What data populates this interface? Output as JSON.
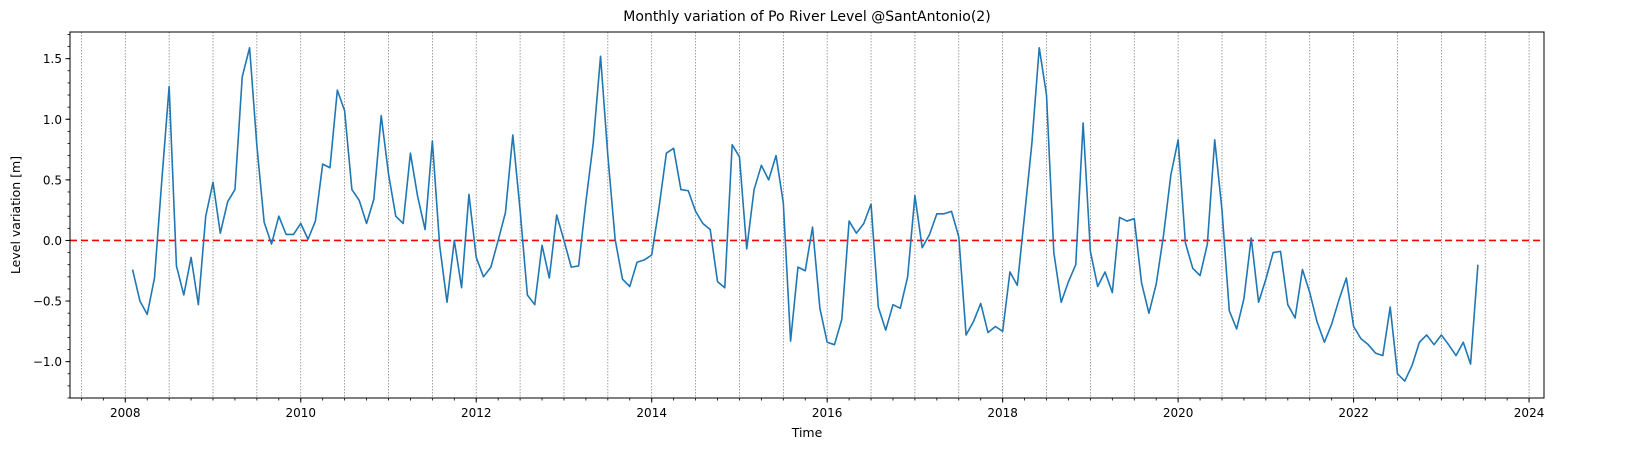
{
  "chart_data": {
    "type": "line",
    "title": "Monthly variation of Po River Level @SantAntonio(2)",
    "xlabel": "Time",
    "ylabel": "Level variation [m]",
    "xlim": [
      2007.37,
      2024.17
    ],
    "ylim": [
      -1.3,
      1.72
    ],
    "x_ticks": [
      2008,
      2010,
      2012,
      2014,
      2016,
      2018,
      2020,
      2022,
      2024
    ],
    "x_tick_labels": [
      "2008",
      "2010",
      "2012",
      "2014",
      "2016",
      "2018",
      "2020",
      "2022",
      "2024"
    ],
    "y_ticks": [
      -1.0,
      -0.5,
      0.0,
      0.5,
      1.0,
      1.5
    ],
    "y_tick_labels": [
      "−1.0",
      "−0.5",
      "0.0",
      "0.5",
      "1.0",
      "1.5"
    ],
    "vertical_gridlines": "half-year, dotted gray",
    "reference_line": {
      "y": 0.0,
      "style": "dashed",
      "color": "#ff0000"
    },
    "line_color": "#1f77b4",
    "x": [
      2008.083,
      2008.167,
      2008.25,
      2008.333,
      2008.417,
      2008.5,
      2008.583,
      2008.667,
      2008.75,
      2008.833,
      2008.917,
      2009.0,
      2009.083,
      2009.167,
      2009.25,
      2009.333,
      2009.417,
      2009.5,
      2009.583,
      2009.667,
      2009.75,
      2009.833,
      2009.917,
      2010.0,
      2010.083,
      2010.167,
      2010.25,
      2010.333,
      2010.417,
      2010.5,
      2010.583,
      2010.667,
      2010.75,
      2010.833,
      2010.917,
      2011.0,
      2011.083,
      2011.167,
      2011.25,
      2011.333,
      2011.417,
      2011.5,
      2011.583,
      2011.667,
      2011.75,
      2011.833,
      2011.917,
      2012.0,
      2012.083,
      2012.167,
      2012.25,
      2012.333,
      2012.417,
      2012.5,
      2012.583,
      2012.667,
      2012.75,
      2012.833,
      2012.917,
      2013.0,
      2013.083,
      2013.167,
      2013.25,
      2013.333,
      2013.417,
      2013.5,
      2013.583,
      2013.667,
      2013.75,
      2013.833,
      2013.917,
      2014.0,
      2014.083,
      2014.167,
      2014.25,
      2014.333,
      2014.417,
      2014.5,
      2014.583,
      2014.667,
      2014.75,
      2014.833,
      2014.917,
      2015.0,
      2015.083,
      2015.167,
      2015.25,
      2015.333,
      2015.417,
      2015.5,
      2015.583,
      2015.667,
      2015.75,
      2015.833,
      2015.917,
      2016.0,
      2016.083,
      2016.167,
      2016.25,
      2016.333,
      2016.417,
      2016.5,
      2016.583,
      2016.667,
      2016.75,
      2016.833,
      2016.917,
      2017.0,
      2017.083,
      2017.167,
      2017.25,
      2017.333,
      2017.417,
      2017.5,
      2017.583,
      2017.667,
      2017.75,
      2017.833,
      2017.917,
      2018.0,
      2018.083,
      2018.167,
      2018.25,
      2018.333,
      2018.417,
      2018.5,
      2018.583,
      2018.667,
      2018.75,
      2018.833,
      2018.917,
      2019.0,
      2019.083,
      2019.167,
      2019.25,
      2019.333,
      2019.417,
      2019.5,
      2019.583,
      2019.667,
      2019.75,
      2019.833,
      2019.917,
      2020.0,
      2020.083,
      2020.167,
      2020.25,
      2020.333,
      2020.417,
      2020.5,
      2020.583,
      2020.667,
      2020.75,
      2020.833,
      2020.917,
      2021.0,
      2021.083,
      2021.167,
      2021.25,
      2021.333,
      2021.417,
      2021.5,
      2021.583,
      2021.667,
      2021.75,
      2021.833,
      2021.917,
      2022.0,
      2022.083,
      2022.167,
      2022.25,
      2022.333,
      2022.417,
      2022.5,
      2022.583,
      2022.667,
      2022.75,
      2022.833,
      2022.917,
      2023.0,
      2023.083,
      2023.167,
      2023.25,
      2023.333,
      2023.417
    ],
    "values": [
      -0.24,
      -0.5,
      -0.61,
      -0.31,
      0.5,
      1.27,
      -0.21,
      -0.45,
      -0.14,
      -0.53,
      0.2,
      0.48,
      0.06,
      0.32,
      0.42,
      1.35,
      1.59,
      0.78,
      0.15,
      -0.03,
      0.2,
      0.05,
      0.05,
      0.14,
      0.01,
      0.16,
      0.63,
      0.6,
      1.24,
      1.07,
      0.42,
      0.33,
      0.14,
      0.34,
      1.03,
      0.55,
      0.2,
      0.14,
      0.72,
      0.36,
      0.09,
      0.82,
      -0.04,
      -0.51,
      0.0,
      -0.39,
      0.38,
      -0.14,
      -0.3,
      -0.22,
      0.0,
      0.23,
      0.87,
      0.25,
      -0.45,
      -0.53,
      -0.04,
      -0.31,
      0.21,
      0.0,
      -0.22,
      -0.21,
      0.32,
      0.8,
      1.52,
      0.7,
      0.01,
      -0.32,
      -0.38,
      -0.18,
      -0.16,
      -0.12,
      0.27,
      0.72,
      0.76,
      0.42,
      0.41,
      0.24,
      0.14,
      0.09,
      -0.34,
      -0.39,
      0.79,
      0.69,
      -0.07,
      0.42,
      0.62,
      0.5,
      0.7,
      0.31,
      -0.83,
      -0.22,
      -0.25,
      0.11,
      -0.56,
      -0.84,
      -0.86,
      -0.65,
      0.16,
      0.06,
      0.14,
      0.3,
      -0.55,
      -0.74,
      -0.53,
      -0.56,
      -0.3,
      0.37,
      -0.06,
      0.05,
      0.22,
      0.22,
      0.24,
      0.03,
      -0.78,
      -0.67,
      -0.52,
      -0.76,
      -0.71,
      -0.75,
      -0.26,
      -0.37,
      0.21,
      0.8,
      1.59,
      1.2,
      -0.1,
      -0.51,
      -0.34,
      -0.2,
      0.97,
      -0.09,
      -0.38,
      -0.26,
      -0.43,
      0.19,
      0.16,
      0.18,
      -0.35,
      -0.6,
      -0.36,
      0.04,
      0.54,
      0.83,
      -0.02,
      -0.23,
      -0.29,
      -0.03,
      0.83,
      0.25,
      -0.58,
      -0.73,
      -0.48,
      0.02,
      -0.51,
      -0.32,
      -0.1,
      -0.09,
      -0.53,
      -0.64,
      -0.24,
      -0.43,
      -0.67,
      -0.84,
      -0.69,
      -0.49,
      -0.31,
      -0.71,
      -0.81,
      -0.86,
      -0.93,
      -0.95,
      -0.55,
      -1.1,
      -1.16,
      -1.03,
      -0.84,
      -0.78,
      -0.86,
      -0.78,
      -0.86,
      -0.95,
      -0.84,
      -1.02,
      -0.2
    ]
  }
}
